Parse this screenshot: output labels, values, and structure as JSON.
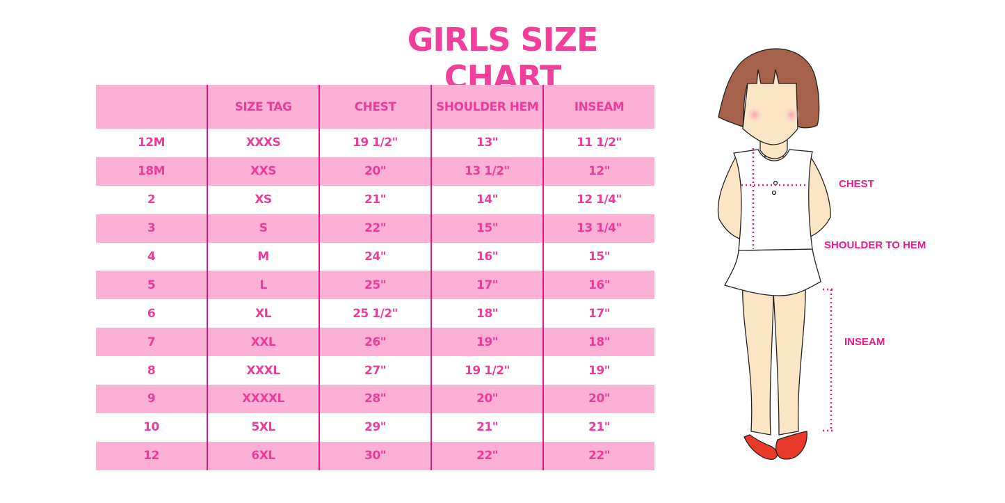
{
  "title": "GIRLS SIZE CHART",
  "table": {
    "headers": [
      "",
      "SIZE TAG",
      "CHEST",
      "SHOULDER HEM",
      "INSEAM"
    ],
    "rows": [
      [
        "12M",
        "XXXS",
        "19 1/2\"",
        "13\"",
        "11 1/2\""
      ],
      [
        "18M",
        "XXS",
        "20\"",
        "13 1/2\"",
        "12\""
      ],
      [
        "2",
        "XS",
        "21\"",
        "14\"",
        "12 1/4\""
      ],
      [
        "3",
        "S",
        "22\"",
        "15\"",
        "13 1/4\""
      ],
      [
        "4",
        "M",
        "24\"",
        "16\"",
        "15\""
      ],
      [
        "5",
        "L",
        "25\"",
        "17\"",
        "16\""
      ],
      [
        "6",
        "XL",
        "25 1/2\"",
        "18\"",
        "17\""
      ],
      [
        "7",
        "XXL",
        "26\"",
        "19\"",
        "18\""
      ],
      [
        "8",
        "XXXL",
        "27\"",
        "19 1/2\"",
        "19\""
      ],
      [
        "9",
        "XXXXL",
        "28\"",
        "20\"",
        "20\""
      ],
      [
        "10",
        "5XL",
        "29\"",
        "21\"",
        "21\""
      ],
      [
        "12",
        "6XL",
        "30\"",
        "22\"",
        "22\""
      ]
    ]
  },
  "figure": {
    "chest_label": "CHEST",
    "shoulder_label": "SHOULDER TO HEM",
    "inseam_label": "INSEAM"
  },
  "colors": {
    "accent": "#f0409c",
    "row_band": "#fcb0d6",
    "divider": "#e0168a"
  }
}
